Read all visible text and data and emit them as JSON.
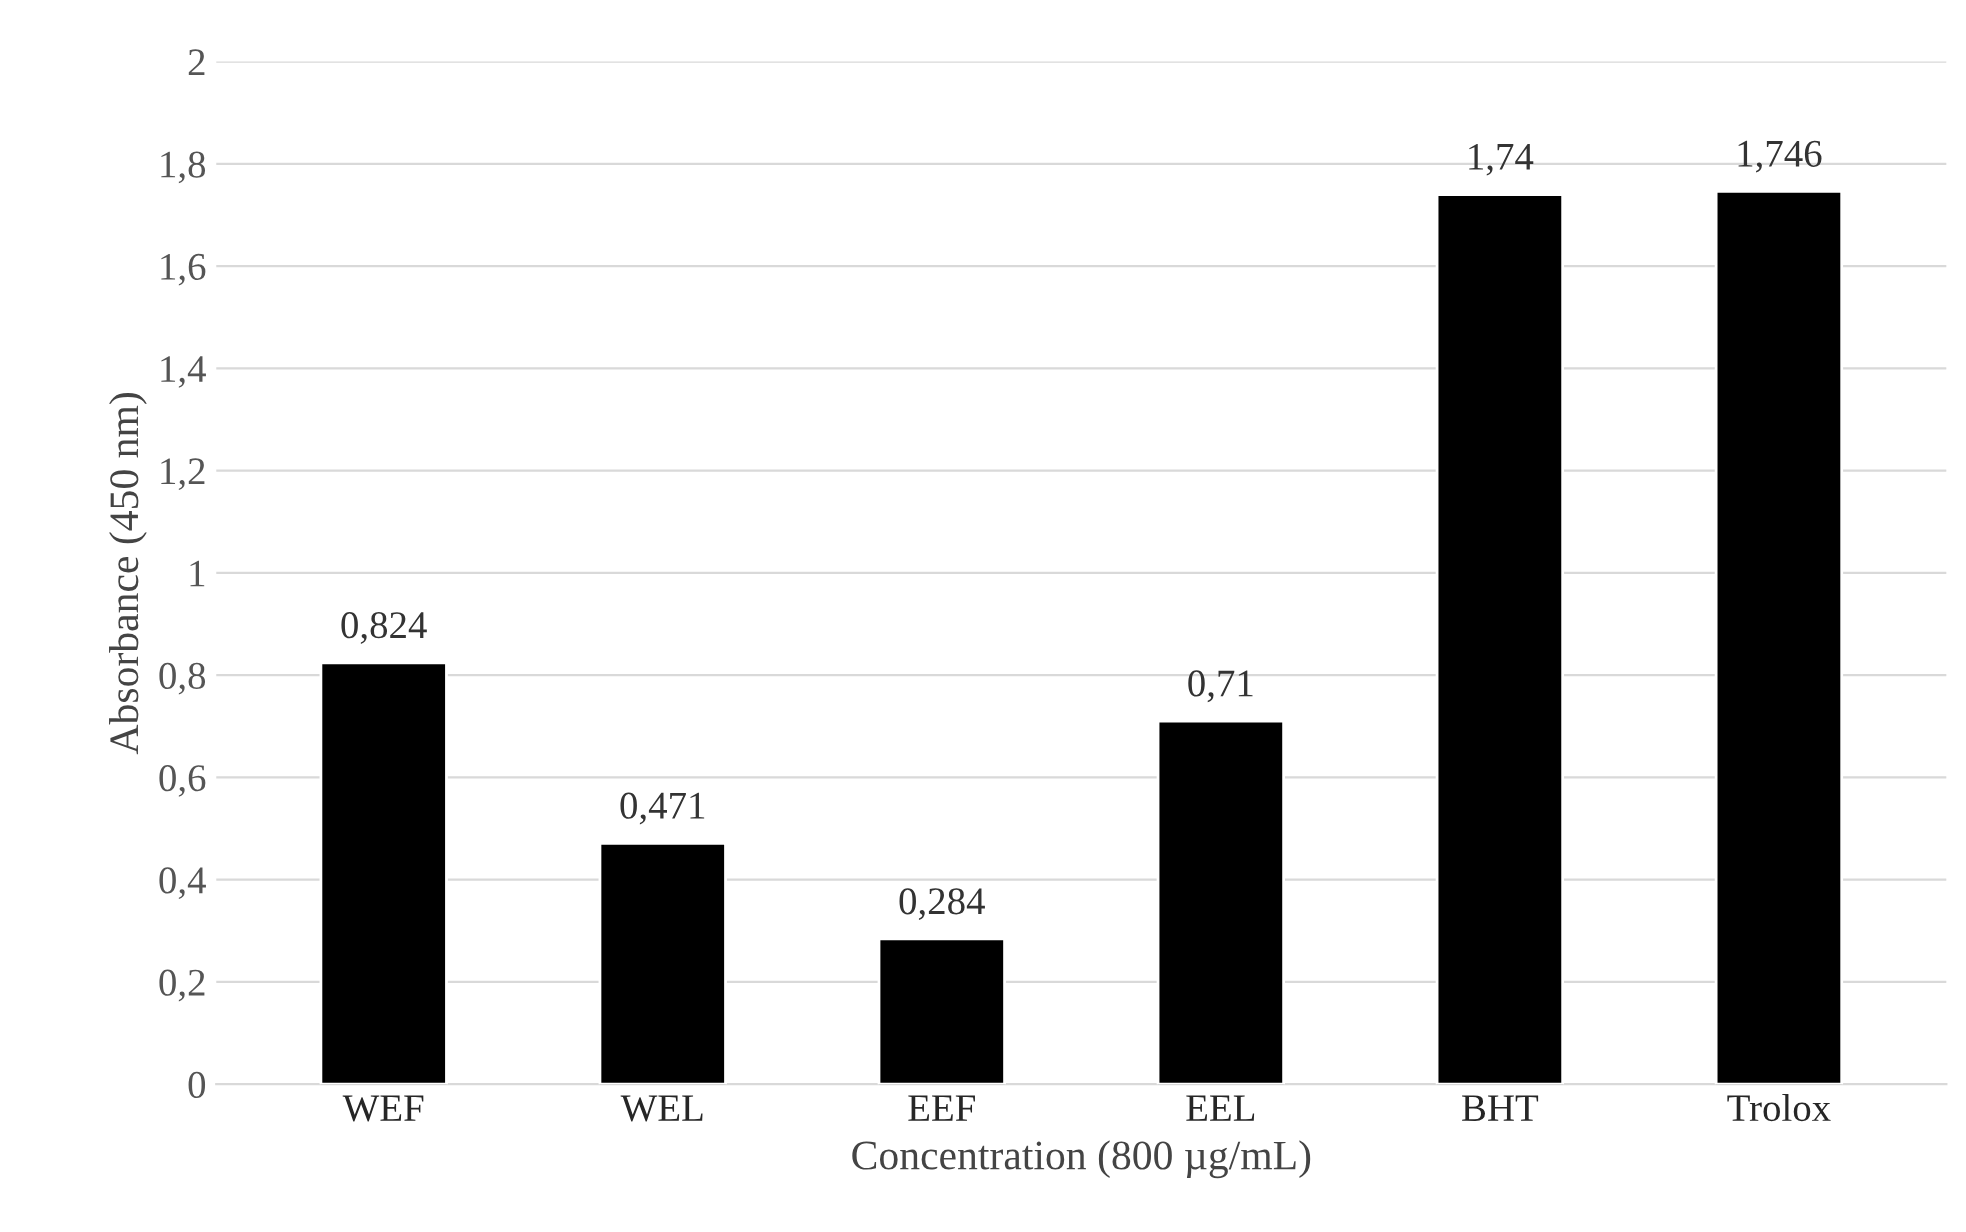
{
  "chart_data": {
    "type": "bar",
    "xlabel": "Concentration (800 µg/mL)",
    "ylabel": "Absorbance (450 nm)",
    "categories": [
      "WEF",
      "WEL",
      "EEF",
      "EEL",
      "BHT",
      "Trolox"
    ],
    "values": [
      0.824,
      0.471,
      0.284,
      0.71,
      1.74,
      1.746
    ],
    "value_labels": [
      "0,824",
      "0,471",
      "0,284",
      "0,71",
      "1,74",
      "1,746"
    ],
    "color": "#000000",
    "ylim": [
      0,
      2
    ],
    "yticks": [
      0,
      {
        "value": 0.2,
        "label": "0,2"
      },
      {
        "value": 0.4,
        "label": "0,4"
      },
      {
        "value": 0.6,
        "label": "0,6"
      },
      {
        "value": 0.8,
        "label": "0,8"
      },
      1,
      {
        "value": 1.2,
        "label": "1,2"
      },
      {
        "value": 1.4,
        "label": "1,4"
      },
      {
        "value": 1.6,
        "label": "1,6"
      },
      {
        "value": 1.8,
        "label": "1,8"
      },
      2
    ],
    "grid": "y"
  }
}
